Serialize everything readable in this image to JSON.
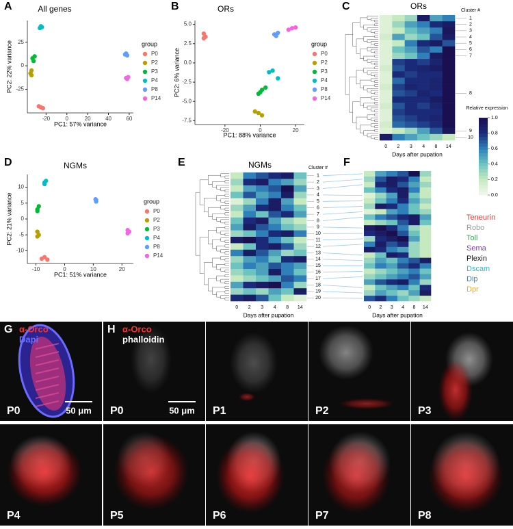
{
  "chart_data": [
    {
      "type": "scatter",
      "panel": "A",
      "title": "All genes",
      "x_label": "PC1: 57% variance",
      "y_label": "PC2: 22% variance",
      "xlim": [
        -38,
        64
      ],
      "ylim": [
        -50,
        48
      ],
      "xticks": [
        -20,
        0,
        20,
        40,
        60
      ],
      "yticks": [
        -25,
        0,
        25
      ],
      "legend_title": "group",
      "series": [
        {
          "name": "P0",
          "color": "#f8766d",
          "x": [
            -27,
            -25,
            -23
          ],
          "values": [
            -43,
            -44,
            -45
          ]
        },
        {
          "name": "P2",
          "color": "#b79f00",
          "x": [
            -34,
            -35,
            -34
          ],
          "values": [
            -5,
            -8,
            -10
          ]
        },
        {
          "name": "P3",
          "color": "#00ba38",
          "x": [
            -32,
            -33,
            -31
          ],
          "values": [
            5,
            8,
            10
          ]
        },
        {
          "name": "P4",
          "color": "#00bfc4",
          "x": [
            -26,
            -25,
            -24
          ],
          "values": [
            40,
            42,
            41
          ]
        },
        {
          "name": "P8",
          "color": "#619cff",
          "x": [
            56,
            57,
            58
          ],
          "values": [
            12,
            13,
            11
          ]
        },
        {
          "name": "P14",
          "color": "#f564e3",
          "x": [
            57,
            58,
            59
          ],
          "values": [
            -13,
            -14,
            -12
          ]
        }
      ]
    },
    {
      "type": "scatter",
      "panel": "B",
      "title": "ORs",
      "x_label": "PC1: 88% variance",
      "y_label": "PC2: 6% variance",
      "xlim": [
        -37,
        25
      ],
      "ylim": [
        -8,
        5.5
      ],
      "xticks": [
        -20,
        0,
        20
      ],
      "yticks": [
        -7.5,
        {
          "value": -5,
          "label": "-5.0"
        },
        -2.5,
        {
          "value": 0,
          "label": "0.0"
        },
        2.5,
        {
          "value": 5,
          "label": "5.0"
        }
      ],
      "legend_title": "group",
      "series": [
        {
          "name": "P0",
          "color": "#f8766d",
          "x": [
            -32,
            -32,
            -31
          ],
          "values": [
            3.2,
            3.8,
            3.4
          ]
        },
        {
          "name": "P2",
          "color": "#b79f00",
          "x": [
            -3,
            -1,
            1
          ],
          "values": [
            -6.3,
            -6.5,
            -6.8
          ]
        },
        {
          "name": "P3",
          "color": "#00ba38",
          "x": [
            -1,
            1,
            3,
            0
          ],
          "values": [
            -4,
            -3.5,
            -3.2,
            -3.8
          ]
        },
        {
          "name": "P4",
          "color": "#00bfc4",
          "x": [
            5,
            7,
            10
          ],
          "values": [
            -1.2,
            -1,
            -2
          ]
        },
        {
          "name": "P8",
          "color": "#619cff",
          "x": [
            8,
            10,
            9
          ],
          "values": [
            3.7,
            3.9,
            3.5
          ]
        },
        {
          "name": "P14",
          "color": "#f564e3",
          "x": [
            16,
            18,
            20
          ],
          "values": [
            4.3,
            4.5,
            4.6
          ]
        }
      ]
    },
    {
      "type": "heatmap",
      "panel": "C",
      "title": "ORs",
      "x_label": "Days after pupation",
      "row_label_title": "Cluster #",
      "columns": [
        "0",
        "2",
        "3",
        "4",
        "8",
        "14"
      ],
      "zlim": [
        0,
        1
      ],
      "color_scale": [
        "#f3f9ec",
        "#c7e9c0",
        "#6cc3c0",
        "#2f7fb8",
        "#1b2a78",
        "#1a1050"
      ],
      "colorbar": {
        "title": "Relative expression",
        "ticks": [
          {
            "value": 0,
            "label": "0.0"
          },
          0.2,
          0.4,
          0.6,
          0.8,
          {
            "value": 1,
            "label": "1.0"
          }
        ]
      },
      "rows": [
        {
          "label": "1",
          "values": [
            0.1,
            0.2,
            0.3,
            0.9,
            0.5,
            0.6
          ]
        },
        {
          "label": "2",
          "values": [
            0.1,
            0.3,
            0.5,
            0.6,
            0.8,
            0.9
          ]
        },
        {
          "label": "3",
          "values": [
            0.1,
            0.2,
            0.4,
            0.5,
            0.6,
            0.95
          ]
        },
        {
          "label": "4",
          "values": [
            0.15,
            0.5,
            0.3,
            0.4,
            0.7,
            0.9
          ]
        },
        {
          "label": "5",
          "values": [
            0.1,
            0.2,
            0.6,
            0.8,
            0.9,
            0.7
          ]
        },
        {
          "label": "6",
          "values": [
            0.1,
            0.4,
            0.5,
            0.7,
            0.6,
            1.0
          ]
        },
        {
          "label": "7",
          "values": [
            0.1,
            0.3,
            0.4,
            0.6,
            0.9,
            1.0
          ]
        },
        {
          "label": null,
          "values": [
            0.1,
            0.75,
            0.8,
            0.75,
            0.85,
            1.0
          ]
        },
        {
          "label": null,
          "values": [
            0.15,
            0.7,
            0.8,
            0.85,
            0.9,
            1.0
          ]
        },
        {
          "label": null,
          "values": [
            0.1,
            0.8,
            0.75,
            0.8,
            0.8,
            1.0
          ]
        },
        {
          "label": null,
          "values": [
            0.1,
            0.65,
            0.8,
            0.8,
            0.85,
            1.0
          ]
        },
        {
          "label": null,
          "values": [
            0.15,
            0.75,
            0.85,
            0.8,
            0.85,
            1.0
          ]
        },
        {
          "label": "8",
          "values": [
            0.1,
            0.7,
            0.75,
            0.85,
            0.8,
            1.0
          ]
        },
        {
          "label": null,
          "values": [
            0.1,
            0.8,
            0.8,
            0.8,
            0.9,
            1.0
          ]
        },
        {
          "label": null,
          "values": [
            0.15,
            0.7,
            0.8,
            0.75,
            0.85,
            1.0
          ]
        },
        {
          "label": null,
          "values": [
            0.1,
            0.75,
            0.8,
            0.8,
            0.8,
            1.0
          ]
        },
        {
          "label": null,
          "values": [
            0.1,
            0.7,
            0.75,
            0.8,
            0.85,
            1.0
          ]
        },
        {
          "label": null,
          "values": [
            0.15,
            0.65,
            0.7,
            0.75,
            0.8,
            1.0
          ]
        },
        {
          "label": "9",
          "values": [
            0.1,
            0.2,
            0.3,
            0.5,
            0.7,
            0.95
          ]
        },
        {
          "label": "10",
          "values": [
            0.9,
            0.6,
            0.5,
            0.4,
            0.3,
            0.2
          ]
        }
      ]
    },
    {
      "type": "scatter",
      "panel": "D",
      "title": "NGMs",
      "x_label": "PC1: 51% variance",
      "y_label": "PC2: 21% variance",
      "xlim": [
        -13,
        24
      ],
      "ylim": [
        -14,
        14
      ],
      "xticks": [
        -10,
        0,
        10,
        20
      ],
      "yticks": [
        -10,
        -5,
        0,
        5,
        10
      ],
      "legend_title": "group",
      "series": [
        {
          "name": "P0",
          "color": "#f8766d",
          "x": [
            -8,
            -7,
            -6
          ],
          "values": [
            -12.5,
            -12,
            -12.8
          ]
        },
        {
          "name": "P2",
          "color": "#b79f00",
          "x": [
            -9.5,
            -9,
            -9.5
          ],
          "values": [
            -4,
            -5,
            -5.5
          ]
        },
        {
          "name": "P3",
          "color": "#00ba38",
          "x": [
            -9.5,
            -9,
            -9.5
          ],
          "values": [
            3,
            4,
            2.5
          ]
        },
        {
          "name": "P4",
          "color": "#00bfc4",
          "x": [
            -7,
            -6.5,
            -7
          ],
          "values": [
            11,
            12,
            11.5
          ]
        },
        {
          "name": "P8",
          "color": "#619cff",
          "x": [
            11,
            11,
            10.8
          ],
          "values": [
            6,
            5.5,
            6.2
          ]
        },
        {
          "name": "P14",
          "color": "#f564e3",
          "x": [
            22,
            22,
            22.5
          ],
          "values": [
            -3.5,
            -4.5,
            -4
          ]
        }
      ]
    },
    {
      "type": "heatmap",
      "panel": "E",
      "title": "NGMs",
      "x_label": "Days after pupation",
      "row_label_title": "Cluster #",
      "columns": [
        "0",
        "2",
        "3",
        "4",
        "8",
        "14"
      ],
      "zlim": [
        0,
        1
      ],
      "color_scale": [
        "#f3f9ec",
        "#c7e9c0",
        "#6cc3c0",
        "#2f7fb8",
        "#1b2a78",
        "#1a1050"
      ],
      "rows": [
        {
          "label": "1",
          "values": [
            0.2,
            0.6,
            0.7,
            0.8,
            0.9,
            0.4
          ]
        },
        {
          "label": "2",
          "values": [
            0.3,
            0.8,
            0.9,
            0.6,
            0.5,
            0.3
          ]
        },
        {
          "label": "3",
          "values": [
            0.2,
            0.5,
            0.6,
            0.7,
            1.0,
            0.5
          ]
        },
        {
          "label": "4",
          "values": [
            0.4,
            0.7,
            0.5,
            0.6,
            0.9,
            0.3
          ]
        },
        {
          "label": "5",
          "values": [
            0.1,
            0.3,
            0.6,
            0.9,
            0.5,
            0.2
          ]
        },
        {
          "label": "6",
          "values": [
            0.3,
            0.5,
            0.8,
            0.9,
            0.6,
            0.4
          ]
        },
        {
          "label": "7",
          "values": [
            0.2,
            0.6,
            0.4,
            0.7,
            0.8,
            0.5
          ]
        },
        {
          "label": "8",
          "values": [
            0.4,
            0.8,
            0.9,
            0.5,
            0.3,
            0.2
          ]
        },
        {
          "label": "9",
          "values": [
            0.5,
            0.9,
            0.7,
            0.6,
            0.4,
            0.3
          ]
        },
        {
          "label": "10",
          "values": [
            0.3,
            0.4,
            0.6,
            0.8,
            0.9,
            0.6
          ]
        },
        {
          "label": "11",
          "values": [
            0.9,
            1.0,
            0.8,
            0.6,
            0.4,
            0.2
          ]
        },
        {
          "label": "12",
          "values": [
            0.2,
            0.4,
            0.8,
            0.9,
            0.7,
            0.3
          ]
        },
        {
          "label": "13",
          "values": [
            0.6,
            0.9,
            0.7,
            0.5,
            0.3,
            0.4
          ]
        },
        {
          "label": "14",
          "values": [
            0.3,
            0.5,
            0.6,
            0.4,
            0.8,
            0.9
          ]
        },
        {
          "label": "15",
          "values": [
            0.4,
            0.6,
            0.5,
            0.7,
            0.6,
            0.5
          ]
        },
        {
          "label": "16",
          "values": [
            0.3,
            0.4,
            0.5,
            0.9,
            0.6,
            0.4
          ]
        },
        {
          "label": "17",
          "values": [
            0.2,
            0.3,
            0.4,
            0.5,
            0.7,
            0.6
          ]
        },
        {
          "label": "18",
          "values": [
            0.5,
            0.8,
            0.9,
            1.0,
            0.6,
            0.3
          ]
        },
        {
          "label": "19",
          "values": [
            0.3,
            0.4,
            0.3,
            0.5,
            0.4,
            0.9
          ]
        },
        {
          "label": "20",
          "values": [
            0.8,
            0.9,
            0.7,
            0.4,
            0.2,
            0.1
          ]
        }
      ]
    },
    {
      "type": "heatmap",
      "panel": "F",
      "x_label": "Days after pupation",
      "columns": [
        "0",
        "2",
        "3",
        "4",
        "8",
        "14"
      ],
      "zlim": [
        0,
        1
      ],
      "color_scale": [
        "#f3f9ec",
        "#c7e9c0",
        "#6cc3c0",
        "#2f7fb8",
        "#1b2a78",
        "#1a1050"
      ],
      "families": [
        {
          "name": "Teneurin",
          "color": "#e8302a"
        },
        {
          "name": "Robo",
          "color": "#9a9a9a"
        },
        {
          "name": "Toll",
          "color": "#3aa655"
        },
        {
          "name": "Sema",
          "color": "#7b3fa0"
        },
        {
          "name": "Plexin",
          "color": "#111111"
        },
        {
          "name": "Dscam",
          "color": "#35b7c8"
        },
        {
          "name": "Dip",
          "color": "#3a7fc8"
        },
        {
          "name": "Dpr",
          "color": "#f0a81c"
        }
      ],
      "rows": [
        {
          "values": [
            0.2,
            0.5,
            0.6,
            0.7,
            1.0,
            0.3
          ]
        },
        {
          "values": [
            0.3,
            0.7,
            0.9,
            0.8,
            0.6,
            0.2
          ]
        },
        {
          "values": [
            0.2,
            0.8,
            0.9,
            0.7,
            0.5,
            0.3
          ]
        },
        {
          "values": [
            0.4,
            0.6,
            0.8,
            0.9,
            0.6,
            0.2
          ]
        },
        {
          "values": [
            0.1,
            0.3,
            0.5,
            0.9,
            0.4,
            0.2
          ]
        },
        {
          "values": [
            0.2,
            0.4,
            0.6,
            0.8,
            0.5,
            0.3
          ]
        },
        {
          "values": [
            0.3,
            0.9,
            0.8,
            0.6,
            0.4,
            0.2
          ]
        },
        {
          "values": [
            0.1,
            0.2,
            0.5,
            0.6,
            0.4,
            0.3
          ]
        },
        {
          "values": [
            0.4,
            0.6,
            0.7,
            0.8,
            0.9,
            0.5
          ]
        },
        {
          "values": [
            0.2,
            0.3,
            0.4,
            0.7,
            0.9,
            0.4
          ]
        },
        {
          "values": [
            0.9,
            1.0,
            0.8,
            0.6,
            0.3,
            0.2
          ]
        },
        {
          "values": [
            0.8,
            0.9,
            1.0,
            0.7,
            0.4,
            0.2
          ]
        },
        {
          "values": [
            0.3,
            0.8,
            0.9,
            1.0,
            0.5,
            0.2
          ]
        },
        {
          "values": [
            0.6,
            0.9,
            0.7,
            0.8,
            0.3,
            0.2
          ]
        },
        {
          "values": [
            0.9,
            0.8,
            0.6,
            0.5,
            0.3,
            0.2
          ]
        },
        {
          "values": [
            0.2,
            0.4,
            0.9,
            0.8,
            0.3,
            0.2
          ]
        },
        {
          "values": [
            0.3,
            0.5,
            0.4,
            0.6,
            0.7,
            0.9
          ]
        },
        {
          "values": [
            0.4,
            0.6,
            0.5,
            0.7,
            0.8,
            0.6
          ]
        },
        {
          "values": [
            0.2,
            0.3,
            0.4,
            0.5,
            0.6,
            0.4
          ]
        },
        {
          "values": [
            0.3,
            0.4,
            0.5,
            0.6,
            0.7,
            0.5
          ]
        },
        {
          "values": [
            0.5,
            0.7,
            0.8,
            0.9,
            0.6,
            0.3
          ]
        },
        {
          "values": [
            0.2,
            0.4,
            0.5,
            0.6,
            0.4,
            0.8
          ]
        },
        {
          "values": [
            0.3,
            0.5,
            0.4,
            0.3,
            0.5,
            0.9
          ]
        },
        {
          "values": [
            0.7,
            0.8,
            0.6,
            0.4,
            0.3,
            0.2
          ]
        }
      ]
    }
  ],
  "figure_panels": {
    "G": {
      "letter": "G",
      "stain_labels": [
        {
          "text": "α-Orco",
          "color": "#ff3030"
        },
        {
          "text": "Dapi",
          "color": "#6c6cff"
        }
      ],
      "stage": "P0",
      "scale_bar": "50 μm"
    },
    "H": {
      "letter": "H",
      "stain_labels": [
        {
          "text": "α-Orco",
          "color": "#ff3030"
        },
        {
          "text": "phalloidin",
          "color": "#ffffff"
        }
      ],
      "stages": [
        "P0",
        "P1",
        "P2",
        "P3",
        "P4",
        "P5",
        "P6",
        "P7",
        "P8"
      ],
      "scale_bar": "50 μm"
    }
  }
}
